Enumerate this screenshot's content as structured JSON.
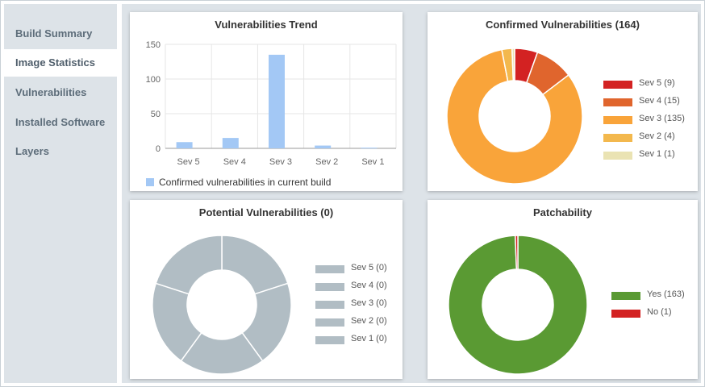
{
  "sidebar": {
    "items": [
      {
        "label": "Build Summary"
      },
      {
        "label": "Image Statistics",
        "active": true
      },
      {
        "label": "Vulnerabilities"
      },
      {
        "label": "Installed Software"
      },
      {
        "label": "Layers"
      }
    ]
  },
  "colors": {
    "sev5": "#d32222",
    "sev4": "#e0652d",
    "sev3": "#f9a43a",
    "sev2": "#f3b84d",
    "sev1": "#eae3b3",
    "potential": "#b1bdc4",
    "yes": "#5a9a33",
    "no": "#d32222",
    "bar": "#a3c8f5"
  },
  "chart_data": [
    {
      "id": "trend",
      "type": "bar",
      "title": "Vulnerabilities Trend",
      "categories": [
        "Sev 5",
        "Sev 4",
        "Sev 3",
        "Sev 2",
        "Sev 1"
      ],
      "series": [
        {
          "name": "Confirmed vulnerabilities in current build",
          "values": [
            9,
            15,
            135,
            4,
            1
          ]
        }
      ],
      "ylim": [
        0,
        150
      ],
      "yticks": [
        0,
        50,
        100,
        150
      ],
      "grid": true,
      "legend": "bottom"
    },
    {
      "id": "confirmed",
      "type": "pie",
      "title": "Confirmed Vulnerabilities (164)",
      "slices": [
        {
          "label": "Sev 5 (9)",
          "value": 9,
          "color": "#d32222"
        },
        {
          "label": "Sev 4 (15)",
          "value": 15,
          "color": "#e0652d"
        },
        {
          "label": "Sev 3 (135)",
          "value": 135,
          "color": "#f9a43a"
        },
        {
          "label": "Sev 2 (4)",
          "value": 4,
          "color": "#f3b84d"
        },
        {
          "label": "Sev 1 (1)",
          "value": 1,
          "color": "#eae3b3"
        }
      ],
      "legend": "right"
    },
    {
      "id": "potential",
      "type": "pie",
      "title": "Potential Vulnerabilities (0)",
      "slices": [
        {
          "label": "Sev 5 (0)",
          "value": 0,
          "color": "#b1bdc4"
        },
        {
          "label": "Sev 4 (0)",
          "value": 0,
          "color": "#b1bdc4"
        },
        {
          "label": "Sev 3 (0)",
          "value": 0,
          "color": "#b1bdc4"
        },
        {
          "label": "Sev 2 (0)",
          "value": 0,
          "color": "#b1bdc4"
        },
        {
          "label": "Sev 1 (0)",
          "value": 0,
          "color": "#b1bdc4"
        }
      ],
      "legend": "right"
    },
    {
      "id": "patchability",
      "type": "pie",
      "title": "Patchability",
      "slices": [
        {
          "label": "Yes (163)",
          "value": 163,
          "color": "#5a9a33"
        },
        {
          "label": "No (1)",
          "value": 1,
          "color": "#d32222"
        }
      ],
      "legend": "right"
    }
  ]
}
